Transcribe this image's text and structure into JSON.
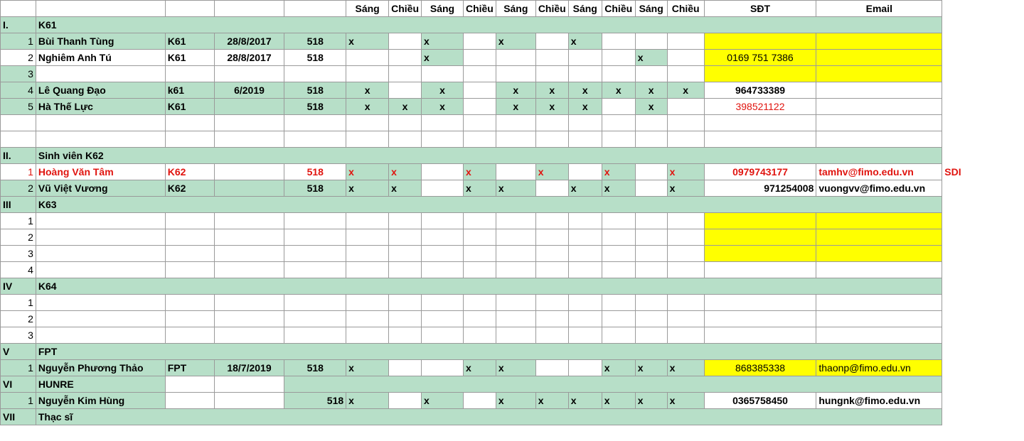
{
  "header": {
    "cols": [
      "",
      "",
      "",
      "",
      "",
      "Sáng",
      "Chiều",
      "Sáng",
      "Chiều",
      "Sáng",
      "Chiều",
      "Sáng",
      "Chiều",
      "Sáng",
      "Chiều",
      "SĐT",
      "Email"
    ]
  },
  "rows": [
    {
      "type": "section",
      "num": "I.",
      "label": "K61"
    },
    {
      "type": "data",
      "bg": "green",
      "num": "1",
      "name": "Bùi Thanh Tùng",
      "cls": "K61",
      "date": "28/8/2017",
      "room": "518",
      "marks": [
        "x",
        "",
        "x",
        "",
        "x",
        "",
        "x",
        "",
        "",
        ""
      ],
      "markAlign": "left",
      "phone": "",
      "email": "",
      "phoneBg": "yellow",
      "emailBg": "yellow"
    },
    {
      "type": "data",
      "bg": "white",
      "num": "2",
      "name": "Nghiêm Anh Tú",
      "cls": "K61",
      "date": "28/8/2017",
      "room": "518",
      "marks": [
        "",
        "",
        "x",
        "",
        "",
        "",
        "",
        "",
        "x",
        ""
      ],
      "markAlign": "left",
      "phone": "0169 751 7386",
      "phoneWeight": "normal",
      "email": "",
      "phoneBg": "yellow",
      "emailBg": "yellow"
    },
    {
      "type": "data",
      "bg": "green",
      "num": "3",
      "name": "",
      "cls": "",
      "date": "",
      "room": "",
      "marks": [
        "",
        "",
        "",
        "",
        "",
        "",
        "",
        "",
        "",
        ""
      ],
      "phone": "",
      "email": "",
      "phoneBg": "yellow",
      "emailBg": "yellow",
      "altBg": "white"
    },
    {
      "type": "data",
      "bg": "green",
      "num": "4",
      "name": "Lê Quang Đạo",
      "cls": "k61",
      "date": "6/2019",
      "room": "518",
      "marks": [
        "x",
        "",
        "x",
        "",
        "x",
        "x",
        "x",
        "x",
        "x",
        "x"
      ],
      "markAlign": "center",
      "phone": "964733389",
      "email": "",
      "phoneBg": "white",
      "emailBg": "white"
    },
    {
      "type": "data",
      "bg": "green",
      "num": "5",
      "name": "Hà Thế Lực",
      "cls": "K61",
      "date": "",
      "room": "518",
      "marks": [
        "x",
        "x",
        "x",
        "",
        "x",
        "x",
        "x",
        "",
        "x",
        ""
      ],
      "markAlign": "center",
      "phone": "398521122",
      "phoneColor": "red",
      "phoneWeight": "normal",
      "email": "",
      "phoneBg": "white",
      "emailBg": "white"
    },
    {
      "type": "blank"
    },
    {
      "type": "blank"
    },
    {
      "type": "section",
      "num": "II.",
      "label": "Sinh viên K62"
    },
    {
      "type": "data",
      "bg": "white",
      "num": "1",
      "red": true,
      "name": "Hoàng Văn Tâm",
      "cls": "K62",
      "date": "",
      "room": "518",
      "marks": [
        "x",
        "x",
        "",
        "x",
        "",
        "x",
        "",
        "x",
        "",
        "x"
      ],
      "markAlign": "left",
      "phone": "0979743177",
      "email": "tamhv@fimo.edu.vn",
      "phoneBg": "white",
      "emailBg": "white",
      "extra": "SDI"
    },
    {
      "type": "data",
      "bg": "green",
      "num": "2",
      "boldNum": true,
      "name": "Vũ Việt Vương",
      "cls": "K62",
      "date": "",
      "room": "518",
      "marks": [
        "x",
        "x",
        "",
        "x",
        "x",
        "",
        "x",
        "x",
        "",
        "x"
      ],
      "markAlign": "left",
      "phone": "971254008",
      "phoneAlign": "right",
      "email": "vuongvv@fimo.edu.vn",
      "phoneBg": "white",
      "emailBg": "white"
    },
    {
      "type": "section",
      "num": "III",
      "label": "K63"
    },
    {
      "type": "data",
      "bg": "white",
      "num": "1",
      "name": "",
      "cls": "",
      "date": "",
      "room": "",
      "marks": [
        "",
        "",
        "",
        "",
        "",
        "",
        "",
        "",
        "",
        ""
      ],
      "phone": "",
      "email": "",
      "phoneBg": "yellow",
      "emailBg": "yellow"
    },
    {
      "type": "data",
      "bg": "white",
      "num": "2",
      "name": "",
      "cls": "",
      "date": "",
      "room": "",
      "marks": [
        "",
        "",
        "",
        "",
        "",
        "",
        "",
        "",
        "",
        ""
      ],
      "phone": "",
      "email": "",
      "phoneBg": "yellow",
      "emailBg": "yellow"
    },
    {
      "type": "data",
      "bg": "white",
      "num": "3",
      "name": "",
      "cls": "",
      "date": "",
      "room": "",
      "marks": [
        "",
        "",
        "",
        "",
        "",
        "",
        "",
        "",
        "",
        ""
      ],
      "phone": "",
      "email": "",
      "phoneBg": "yellow",
      "emailBg": "yellow"
    },
    {
      "type": "data",
      "bg": "white",
      "num": "4",
      "name": "",
      "cls": "",
      "date": "",
      "room": "",
      "marks": [
        "",
        "",
        "",
        "",
        "",
        "",
        "",
        "",
        "",
        ""
      ],
      "phone": "",
      "email": "",
      "phoneBg": "white",
      "emailBg": "white"
    },
    {
      "type": "section",
      "num": "IV",
      "label": "K64"
    },
    {
      "type": "data",
      "bg": "white",
      "num": "1",
      "name": "",
      "cls": "",
      "date": "",
      "room": "",
      "marks": [
        "",
        "",
        "",
        "",
        "",
        "",
        "",
        "",
        "",
        ""
      ],
      "phone": "",
      "email": "",
      "phoneBg": "white",
      "emailBg": "white"
    },
    {
      "type": "data",
      "bg": "white",
      "num": "2",
      "name": "",
      "cls": "",
      "date": "",
      "room": "",
      "marks": [
        "",
        "",
        "",
        "",
        "",
        "",
        "",
        "",
        "",
        ""
      ],
      "phone": "",
      "email": "",
      "phoneBg": "white",
      "emailBg": "white"
    },
    {
      "type": "data",
      "bg": "white",
      "num": "3",
      "name": "",
      "cls": "",
      "date": "",
      "room": "",
      "marks": [
        "",
        "",
        "",
        "",
        "",
        "",
        "",
        "",
        "",
        ""
      ],
      "phone": "",
      "email": "",
      "phoneBg": "white",
      "emailBg": "white"
    },
    {
      "type": "section",
      "num": "V",
      "label": "FPT"
    },
    {
      "type": "data",
      "bg": "green",
      "num": "1",
      "name": "Nguyễn Phương Thảo",
      "cls": "FPT",
      "date": "18/7/2019",
      "room": "518",
      "marks": [
        "x",
        "",
        "",
        "x",
        "x",
        "",
        "",
        "x",
        "x",
        "x"
      ],
      "markAlign": "left",
      "phone": "868385338",
      "phoneWeight": "normal",
      "email": "thaonp@fimo.edu.vn",
      "emailWeight": "normal",
      "phoneBg": "yellow",
      "emailBg": "yellow"
    },
    {
      "type": "section",
      "num": "VI",
      "label": "HUNRE",
      "partial": true
    },
    {
      "type": "data",
      "bg": "green",
      "num": "1",
      "name": "Nguyễn Kim Hùng",
      "cls": "",
      "date": "",
      "room": "518",
      "roomAlign": "right",
      "marks": [
        "x",
        "",
        "x",
        "",
        "x",
        "x",
        "x",
        "x",
        "x",
        "x"
      ],
      "markAlign": "left",
      "phone": "0365758450",
      "email": "hungnk@fimo.edu.vn",
      "phoneBg": "white",
      "emailBg": "white"
    },
    {
      "type": "section",
      "num": "VII",
      "label": "Thạc sĩ"
    }
  ]
}
